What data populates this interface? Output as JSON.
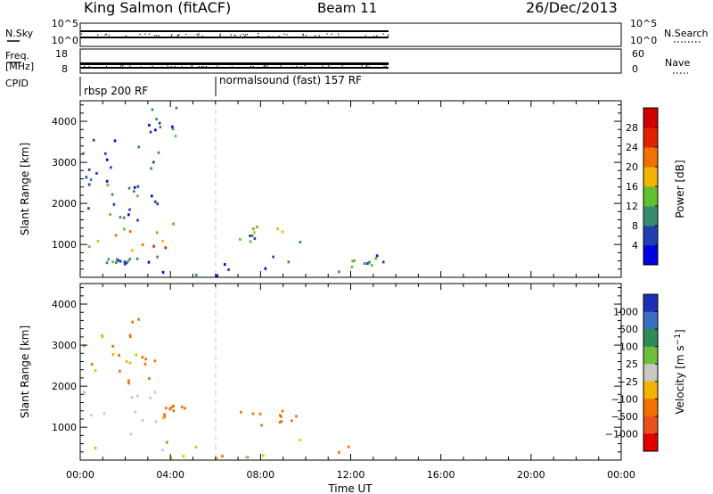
{
  "header": {
    "station": "King Salmon (fitACF)",
    "beam": "Beam 11",
    "date": "26/Dec/2013"
  },
  "strips": {
    "nsky_label": "N.Sky",
    "nsky_ticks": [
      "10^5",
      "10^0"
    ],
    "nsearch_label": "N.Search",
    "nsearch_ticks": [
      "10^5",
      "10^0"
    ],
    "freq_label_top": "Freq.",
    "freq_label_unit": "[MHz]",
    "freq_ticks": [
      "18",
      "8"
    ],
    "nave_label": "Nave",
    "nave_ticks": [
      "60",
      "0"
    ],
    "cpid_label": "CPID",
    "cpid_segments": [
      {
        "label": "rbsp 200 RF",
        "start_hour": 0
      },
      {
        "label": "normalsound (fast) 157 RF",
        "start_hour": 6
      }
    ]
  },
  "chart_data": [
    {
      "type": "heatmap",
      "panel": "power",
      "xlabel": "",
      "ylabel": "Slant Range [km]",
      "xlim": [
        0,
        24
      ],
      "ylim": [
        200,
        4500
      ],
      "yticks": [
        1000,
        2000,
        3000,
        4000
      ],
      "colorbar": {
        "label": "Power [dB]",
        "ticks": [
          4,
          8,
          12,
          16,
          20,
          24,
          28
        ],
        "range": [
          0,
          32
        ],
        "colors": [
          "#0000e0",
          "#2140b0",
          "#3a8a70",
          "#60c030",
          "#f2b400",
          "#f07000",
          "#e02000",
          "#d00000"
        ]
      },
      "data_extent_hours": [
        0,
        13.9
      ],
      "regions": [
        {
          "t": [
            0.0,
            4.5
          ],
          "r": [
            800,
            1500
          ],
          "value": 20
        },
        {
          "t": [
            0.0,
            2.5
          ],
          "r": [
            1500,
            2500
          ],
          "value": 8
        },
        {
          "t": [
            0.0,
            2.0
          ],
          "r": [
            2500,
            3700
          ],
          "value": 6
        },
        {
          "t": [
            2.0,
            3.5
          ],
          "r": [
            1600,
            3500
          ],
          "value": 5
        },
        {
          "t": [
            3.0,
            4.5
          ],
          "r": [
            3600,
            4300
          ],
          "value": 9
        },
        {
          "t": [
            1.0,
            2.5
          ],
          "r": [
            480,
            620
          ],
          "value": 10
        },
        {
          "t": [
            6.8,
            9.8
          ],
          "r": [
            1000,
            1400
          ],
          "value": 12
        },
        {
          "t": [
            0.5,
            13.8
          ],
          "r": [
            200,
            700
          ],
          "value": 5
        },
        {
          "t": [
            12.0,
            13.5
          ],
          "r": [
            400,
            700
          ],
          "value": 9
        }
      ]
    },
    {
      "type": "heatmap",
      "panel": "velocity",
      "xlabel": "Time UT",
      "ylabel": "Slant Range [km]",
      "xlim": [
        0,
        24
      ],
      "ylim": [
        200,
        4500
      ],
      "xticks": [
        "00:00",
        "04:00",
        "08:00",
        "12:00",
        "16:00",
        "20:00",
        "00:00"
      ],
      "yticks": [
        1000,
        2000,
        3000,
        4000
      ],
      "colorbar": {
        "label": "Velocity [m s^-1]",
        "ticks": [
          "1000",
          "500",
          "100",
          "25",
          "−25",
          "−100",
          "−500",
          "−1000"
        ],
        "colors": [
          "#1b2fb8",
          "#3a6fbf",
          "#2e8b57",
          "#6cbf3c",
          "#c8c8c0",
          "#f2b400",
          "#f07000",
          "#e85020",
          "#e00000"
        ]
      },
      "data_extent_hours": [
        0,
        13.9
      ],
      "regions": [
        {
          "t": [
            0.0,
            3.8
          ],
          "r": [
            700,
            1900
          ],
          "value": 0
        },
        {
          "t": [
            0.0,
            2.5
          ],
          "r": [
            1900,
            3200
          ],
          "value": -120
        },
        {
          "t": [
            2.0,
            3.5
          ],
          "r": [
            2000,
            3600
          ],
          "value": -200
        },
        {
          "t": [
            3.5,
            4.6
          ],
          "r": [
            1100,
            1500
          ],
          "value": -150
        },
        {
          "t": [
            6.8,
            9.6
          ],
          "r": [
            1000,
            1400
          ],
          "value": -160
        },
        {
          "t": [
            0.5,
            13.8
          ],
          "r": [
            200,
            700
          ],
          "value": -60
        }
      ]
    }
  ]
}
